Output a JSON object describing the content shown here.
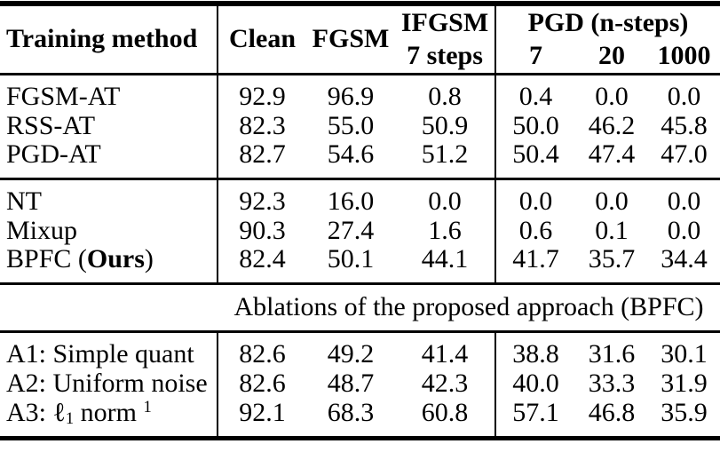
{
  "table": {
    "colors": {
      "text": "#000000",
      "background": "#ffffff",
      "rule": "#000000"
    },
    "header": {
      "col_method": "Training method",
      "col_clean": "Clean",
      "col_fgsm": "FGSM",
      "col_ifgsm_line1": "IFGSM",
      "col_ifgsm_line2": "7 steps",
      "col_pgd_group": "PGD (n-steps)",
      "col_pgd_7": "7",
      "col_pgd_20": "20",
      "col_pgd_1000": "1000"
    },
    "banner": "Ablations of the proposed approach (BPFC)",
    "sections": [
      {
        "name": "adversarial-training-methods",
        "rows": [
          {
            "method": [
              {
                "t": "FGSM-AT"
              }
            ],
            "values": [
              "92.9",
              "96.9",
              "0.8",
              "0.4",
              "0.0",
              "0.0"
            ]
          },
          {
            "method": [
              {
                "t": "RSS-AT"
              }
            ],
            "values": [
              "82.3",
              "55.0",
              "50.9",
              "50.0",
              "46.2",
              "45.8"
            ]
          },
          {
            "method": [
              {
                "t": "PGD-AT"
              }
            ],
            "values": [
              "82.7",
              "54.6",
              "51.2",
              "50.4",
              "47.4",
              "47.0"
            ]
          }
        ]
      },
      {
        "name": "normal-training-and-proposed",
        "rows": [
          {
            "method": [
              {
                "t": "NT"
              }
            ],
            "values": [
              "92.3",
              "16.0",
              "0.0",
              "0.0",
              "0.0",
              "0.0"
            ]
          },
          {
            "method": [
              {
                "t": "Mixup"
              }
            ],
            "values": [
              "90.3",
              "27.4",
              "1.6",
              "0.6",
              "0.1",
              "0.0"
            ]
          },
          {
            "method": [
              {
                "t": "BPFC ("
              },
              {
                "t": "Ours",
                "b": true
              },
              {
                "t": ")"
              }
            ],
            "values": [
              "82.4",
              "50.1",
              "44.1",
              "41.7",
              "35.7",
              "34.4"
            ]
          }
        ]
      },
      {
        "name": "ablations",
        "rows": [
          {
            "method": [
              {
                "t": "A1: Simple quant"
              }
            ],
            "values": [
              "82.6",
              "49.2",
              "41.4",
              "38.8",
              "31.6",
              "30.1"
            ]
          },
          {
            "method": [
              {
                "t": "A2: Uniform noise"
              }
            ],
            "values": [
              "82.6",
              "48.7",
              "42.3",
              "40.0",
              "33.3",
              "31.9"
            ]
          },
          {
            "method": [
              {
                "t": "A3: "
              },
              {
                "t": "ℓ"
              },
              {
                "t": "1",
                "sub": true
              },
              {
                "t": " norm "
              },
              {
                "t": "1",
                "sup": true
              }
            ],
            "values": [
              "92.1",
              "68.3",
              "60.8",
              "57.1",
              "46.8",
              "35.9"
            ]
          }
        ]
      }
    ]
  }
}
